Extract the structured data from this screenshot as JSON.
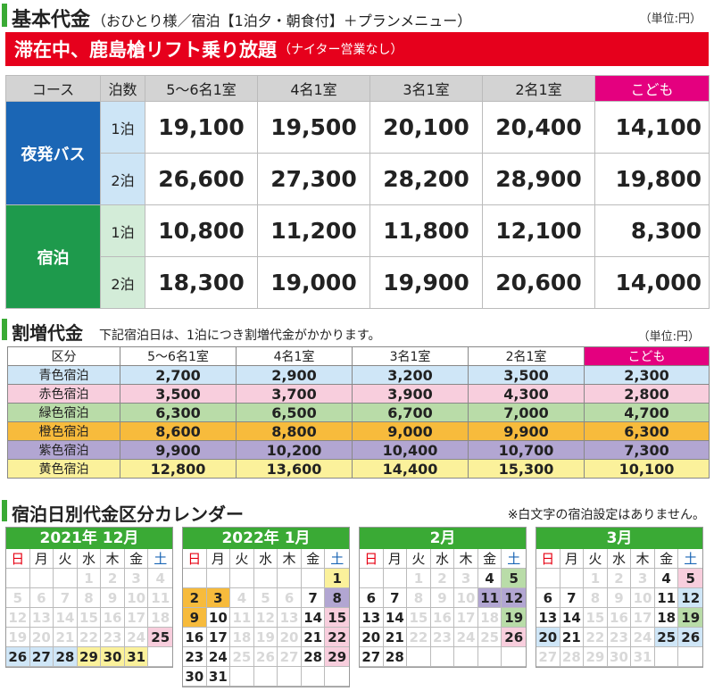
{
  "basic": {
    "title": "基本代金",
    "subtitle": "（おひとり様／宿泊【1泊夕・朝食付】＋プランメニュー）",
    "unit": "（単位:円）",
    "banner_main": "滞在中、鹿島槍リフト乗り放題",
    "banner_sub": "（ナイター営業なし）",
    "headers": [
      "コース",
      "泊数",
      "5〜6名1室",
      "4名1室",
      "3名1室",
      "2名1室",
      "こども"
    ],
    "rows": [
      {
        "course": "夜発バス",
        "nights": "1泊",
        "prices": [
          "19,100",
          "19,500",
          "20,100",
          "20,400",
          "14,100"
        ]
      },
      {
        "course": "夜発バス",
        "nights": "2泊",
        "prices": [
          "26,600",
          "27,300",
          "28,200",
          "28,900",
          "19,800"
        ]
      },
      {
        "course": "宿泊",
        "nights": "1泊",
        "prices": [
          "10,800",
          "11,200",
          "11,800",
          "12,100",
          "8,300"
        ]
      },
      {
        "course": "宿泊",
        "nights": "2泊",
        "prices": [
          "18,300",
          "19,000",
          "19,900",
          "20,600",
          "14,000"
        ]
      }
    ]
  },
  "surcharge": {
    "title": "割増代金",
    "subtitle": "下記宿泊日は、1泊につき割増代金がかかります。",
    "unit": "（単位:円）",
    "headers": [
      "区分",
      "5〜6名1室",
      "4名1室",
      "3名1室",
      "2名1室",
      "こども"
    ],
    "rows": [
      {
        "zone": "青色宿泊",
        "color": "#cfe6f7",
        "values": [
          "2,700",
          "2,900",
          "3,200",
          "3,500",
          "2,300"
        ]
      },
      {
        "zone": "赤色宿泊",
        "color": "#f8cedd",
        "values": [
          "3,500",
          "3,700",
          "3,900",
          "4,300",
          "2,800"
        ]
      },
      {
        "zone": "緑色宿泊",
        "color": "#b9dca8",
        "values": [
          "6,300",
          "6,500",
          "6,700",
          "7,000",
          "4,700"
        ]
      },
      {
        "zone": "橙色宿泊",
        "color": "#f7bb3c",
        "values": [
          "8,600",
          "8,800",
          "9,000",
          "9,900",
          "6,300"
        ]
      },
      {
        "zone": "紫色宿泊",
        "color": "#b2a6d2",
        "values": [
          "9,900",
          "10,200",
          "10,400",
          "10,700",
          "7,300"
        ]
      },
      {
        "zone": "黄色宿泊",
        "color": "#fbf19b",
        "values": [
          "12,800",
          "13,600",
          "14,400",
          "15,300",
          "10,100"
        ]
      }
    ]
  },
  "calendar": {
    "title": "宿泊日別代金区分カレンダー",
    "note": "※白文字の宿泊設定はありません。",
    "weekdays": [
      "日",
      "月",
      "火",
      "水",
      "木",
      "金",
      "土"
    ],
    "zone_colors": {
      "b": "#cfe6f7",
      "r": "#f8cedd",
      "g": "#b9dca8",
      "o": "#f7bb3c",
      "p": "#b2a6d2",
      "y": "#fbf19b",
      "n": "#ffffff"
    },
    "months": [
      {
        "title": "2021年 12月",
        "weeks": [
          [
            [
              "",
              ""
            ],
            [
              "",
              ""
            ],
            [
              "",
              ""
            ],
            [
              "1",
              "w"
            ],
            [
              "2",
              "w"
            ],
            [
              "3",
              "w"
            ],
            [
              "4",
              "w"
            ]
          ],
          [
            [
              "5",
              "w"
            ],
            [
              "6",
              "w"
            ],
            [
              "7",
              "w"
            ],
            [
              "8",
              "w"
            ],
            [
              "9",
              "w"
            ],
            [
              "10",
              "w"
            ],
            [
              "11",
              "w"
            ]
          ],
          [
            [
              "12",
              "w"
            ],
            [
              "13",
              "w"
            ],
            [
              "14",
              "w"
            ],
            [
              "15",
              "w"
            ],
            [
              "16",
              "w"
            ],
            [
              "17",
              "w"
            ],
            [
              "18",
              "w"
            ]
          ],
          [
            [
              "19",
              "w"
            ],
            [
              "20",
              "w"
            ],
            [
              "21",
              "w"
            ],
            [
              "22",
              "w"
            ],
            [
              "23",
              "w"
            ],
            [
              "24",
              "w"
            ],
            [
              "25",
              "r"
            ]
          ],
          [
            [
              "26",
              "b"
            ],
            [
              "27",
              "b"
            ],
            [
              "28",
              "b"
            ],
            [
              "29",
              "y"
            ],
            [
              "30",
              "y"
            ],
            [
              "31",
              "y"
            ],
            [
              "",
              ""
            ]
          ]
        ]
      },
      {
        "title": "2022年 1月",
        "weeks": [
          [
            [
              "",
              ""
            ],
            [
              "",
              ""
            ],
            [
              "",
              ""
            ],
            [
              "",
              ""
            ],
            [
              "",
              ""
            ],
            [
              "",
              ""
            ],
            [
              "1",
              "y"
            ]
          ],
          [
            [
              "2",
              "o"
            ],
            [
              "3",
              "o"
            ],
            [
              "4",
              "w"
            ],
            [
              "5",
              "w"
            ],
            [
              "6",
              "w"
            ],
            [
              "7",
              "n"
            ],
            [
              "8",
              "p"
            ]
          ],
          [
            [
              "9",
              "o"
            ],
            [
              "10",
              "n"
            ],
            [
              "11",
              "w"
            ],
            [
              "12",
              "w"
            ],
            [
              "13",
              "w"
            ],
            [
              "14",
              "n"
            ],
            [
              "15",
              "r"
            ]
          ],
          [
            [
              "16",
              "n"
            ],
            [
              "17",
              "n"
            ],
            [
              "18",
              "w"
            ],
            [
              "19",
              "w"
            ],
            [
              "20",
              "w"
            ],
            [
              "21",
              "n"
            ],
            [
              "22",
              "r"
            ]
          ],
          [
            [
              "23",
              "n"
            ],
            [
              "24",
              "n"
            ],
            [
              "25",
              "w"
            ],
            [
              "26",
              "w"
            ],
            [
              "27",
              "w"
            ],
            [
              "28",
              "n"
            ],
            [
              "29",
              "r"
            ]
          ],
          [
            [
              "30",
              "n"
            ],
            [
              "31",
              "n"
            ],
            [
              "",
              ""
            ],
            [
              "",
              ""
            ],
            [
              "",
              ""
            ],
            [
              "",
              ""
            ],
            [
              "",
              ""
            ]
          ]
        ]
      },
      {
        "title": "2月",
        "weeks": [
          [
            [
              "",
              ""
            ],
            [
              "",
              ""
            ],
            [
              "1",
              "w"
            ],
            [
              "2",
              "w"
            ],
            [
              "3",
              "w"
            ],
            [
              "4",
              "n"
            ],
            [
              "5",
              "g"
            ]
          ],
          [
            [
              "6",
              "n"
            ],
            [
              "7",
              "n"
            ],
            [
              "8",
              "w"
            ],
            [
              "9",
              "w"
            ],
            [
              "10",
              "w"
            ],
            [
              "11",
              "p"
            ],
            [
              "12",
              "p"
            ]
          ],
          [
            [
              "13",
              "n"
            ],
            [
              "14",
              "n"
            ],
            [
              "15",
              "w"
            ],
            [
              "16",
              "w"
            ],
            [
              "17",
              "w"
            ],
            [
              "18",
              "w"
            ],
            [
              "19",
              "g"
            ]
          ],
          [
            [
              "20",
              "n"
            ],
            [
              "21",
              "n"
            ],
            [
              "22",
              "w"
            ],
            [
              "23",
              "w"
            ],
            [
              "24",
              "w"
            ],
            [
              "25",
              "w"
            ],
            [
              "26",
              "r"
            ]
          ],
          [
            [
              "27",
              "n"
            ],
            [
              "28",
              "n"
            ],
            [
              "",
              ""
            ],
            [
              "",
              ""
            ],
            [
              "",
              ""
            ],
            [
              "",
              ""
            ],
            [
              "",
              ""
            ]
          ]
        ]
      },
      {
        "title": "3月",
        "weeks": [
          [
            [
              "",
              ""
            ],
            [
              "",
              ""
            ],
            [
              "1",
              "w"
            ],
            [
              "2",
              "w"
            ],
            [
              "3",
              "w"
            ],
            [
              "4",
              "n"
            ],
            [
              "5",
              "r"
            ]
          ],
          [
            [
              "6",
              "n"
            ],
            [
              "7",
              "n"
            ],
            [
              "8",
              "w"
            ],
            [
              "9",
              "w"
            ],
            [
              "10",
              "w"
            ],
            [
              "11",
              "n"
            ],
            [
              "12",
              "b"
            ]
          ],
          [
            [
              "13",
              "n"
            ],
            [
              "14",
              "n"
            ],
            [
              "15",
              "w"
            ],
            [
              "16",
              "w"
            ],
            [
              "17",
              "w"
            ],
            [
              "18",
              "n"
            ],
            [
              "19",
              "g"
            ]
          ],
          [
            [
              "20",
              "b"
            ],
            [
              "21",
              "n"
            ],
            [
              "22",
              "w"
            ],
            [
              "23",
              "w"
            ],
            [
              "24",
              "w"
            ],
            [
              "25",
              "b"
            ],
            [
              "26",
              "b"
            ]
          ],
          [
            [
              "27",
              "w"
            ],
            [
              "28",
              "w"
            ],
            [
              "29",
              "w"
            ],
            [
              "30",
              "w"
            ],
            [
              "31",
              "w"
            ],
            [
              "",
              ""
            ],
            [
              "",
              ""
            ]
          ]
        ]
      }
    ]
  }
}
